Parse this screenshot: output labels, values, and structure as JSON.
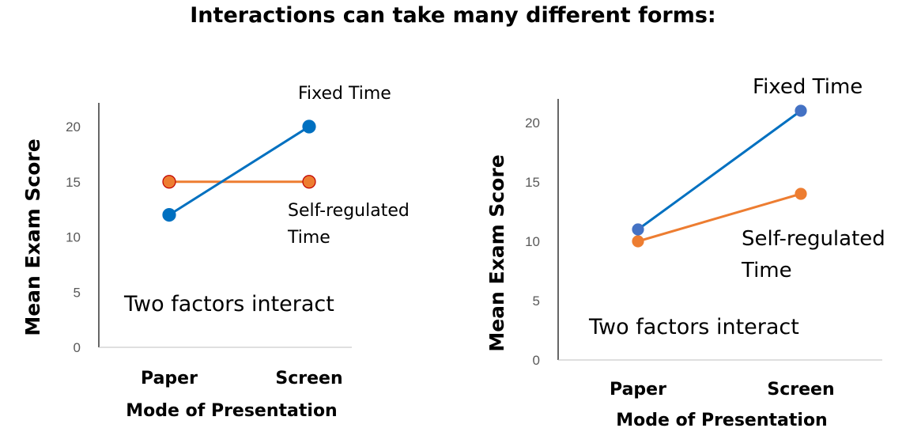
{
  "title": "Interactions can take many different forms:",
  "chart_data": [
    {
      "type": "line",
      "categories": [
        "Paper",
        "Screen"
      ],
      "series": [
        {
          "name": "Fixed Time",
          "values": [
            12,
            20
          ],
          "color": "#0070C0",
          "marker_fill": "#0070C0",
          "marker_stroke": "#0070C0"
        },
        {
          "name": "Self-regulated Time",
          "values": [
            15,
            15
          ],
          "color": "#ED7D31",
          "marker_fill": "#ED7D31",
          "marker_stroke": "#C00000"
        }
      ],
      "yticks": [
        0,
        5,
        10,
        15,
        20
      ],
      "ylim": [
        0,
        22
      ],
      "xlabel": "Mode of Presentation",
      "ylabel": "Mean Exam Score",
      "series_labels": {
        "fixed": "Fixed Time",
        "self_line1": "Self-regulated",
        "self_line2": "Time"
      },
      "annotation": "Two factors interact"
    },
    {
      "type": "line",
      "categories": [
        "Paper",
        "Screen"
      ],
      "series": [
        {
          "name": "Fixed Time",
          "values": [
            11,
            21
          ],
          "color": "#0070C0",
          "marker_fill": "#4472C4",
          "marker_stroke": "#4472C4"
        },
        {
          "name": "Self-regulated Time",
          "values": [
            10,
            14
          ],
          "color": "#ED7D31",
          "marker_fill": "#ED7D31",
          "marker_stroke": "#ED7D31"
        }
      ],
      "yticks": [
        0,
        5,
        10,
        15,
        20
      ],
      "ylim": [
        0,
        22
      ],
      "xlabel": "Mode of Presentation",
      "ylabel": "Mean Exam Score",
      "series_labels": {
        "fixed": "Fixed Time",
        "self_line1": "Self-regulated",
        "self_line2": "Time"
      },
      "annotation": "Two factors interact"
    }
  ]
}
